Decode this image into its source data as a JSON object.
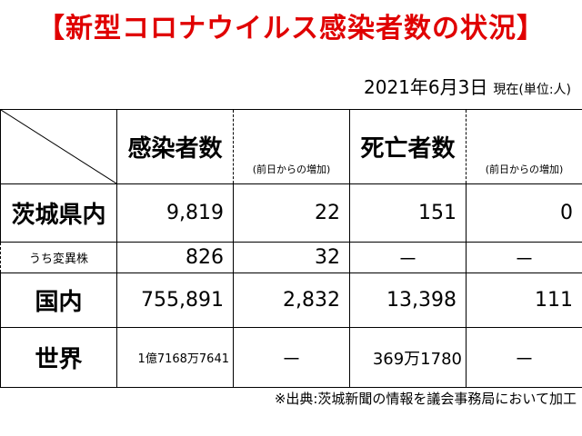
{
  "title": "【新型コロナウイルス感染者数の状況】",
  "date": "2021年6月3日",
  "status_note": "現在(単位:人)",
  "headers": {
    "infected": "感染者数",
    "infected_change": "(前日からの増加)",
    "deaths": "死亡者数",
    "deaths_change": "(前日からの増加)"
  },
  "rows": [
    {
      "label": "茨城県内",
      "infected": "9,819",
      "infected_change": "22",
      "deaths": "151",
      "deaths_change": "0"
    },
    {
      "label": "うち変異株",
      "infected": "826",
      "infected_change": "32",
      "deaths": "－",
      "deaths_change": "－"
    },
    {
      "label": "国内",
      "infected": "755,891",
      "infected_change": "2,832",
      "deaths": "13,398",
      "deaths_change": "111"
    },
    {
      "label": "世界",
      "infected": "1億7168万7641",
      "infected_change": "－",
      "deaths": "369万1780",
      "deaths_change": "－"
    }
  ],
  "source": "※出典:茨城新聞の情報を議会事務局において加工",
  "colors": {
    "title": "#e00000"
  }
}
